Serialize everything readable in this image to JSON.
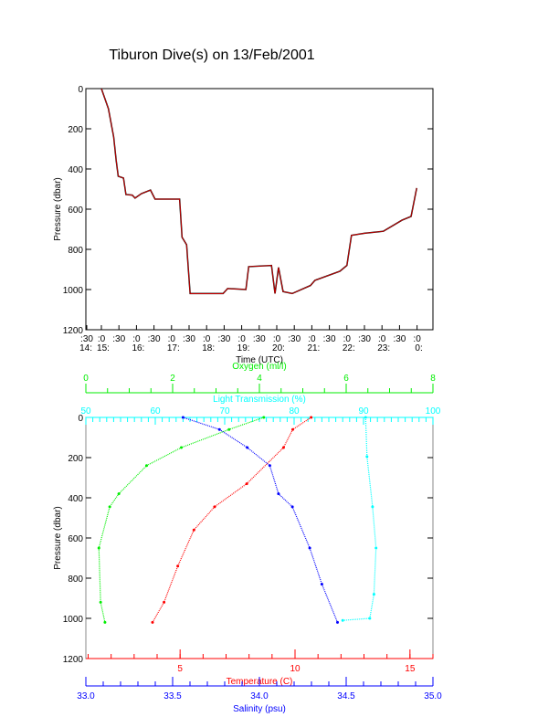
{
  "chart_data": [
    {
      "type": "line",
      "title": "Tiburon Dive(s) on 13/Feb/2001",
      "xlabel": "Time (UTC)",
      "ylabel": "Pressure (dbar)",
      "xlim_hours": [
        14.5,
        24.5
      ],
      "ylim": [
        1200,
        0
      ],
      "x_tick_top": [
        ":30",
        ":0",
        ":30",
        ":0",
        ":30",
        ":0",
        ":30",
        ":0",
        ":30",
        ":0",
        ":30",
        ":0",
        ":30",
        ":0",
        ":30",
        ":0",
        ":30",
        ":0",
        ":30",
        ":0"
      ],
      "x_tick_bottom": [
        "14:",
        "15:",
        "",
        "16:",
        "",
        "17:",
        "",
        "18:",
        "",
        "19:",
        "",
        "20:",
        "",
        "21:",
        "",
        "22:",
        "",
        "23:",
        "",
        "0:"
      ],
      "y_ticks": [
        0,
        200,
        400,
        600,
        800,
        1000,
        1200
      ],
      "series": [
        {
          "name": "pressure",
          "color": "#ff0000",
          "points": [
            [
              15.0,
              0
            ],
            [
              15.2,
              100
            ],
            [
              15.35,
              240
            ],
            [
              15.42,
              355
            ],
            [
              15.48,
              436
            ],
            [
              15.63,
              445
            ],
            [
              15.7,
              527
            ],
            [
              15.88,
              530
            ],
            [
              15.96,
              545
            ],
            [
              16.14,
              523
            ],
            [
              16.4,
              505
            ],
            [
              16.53,
              550
            ],
            [
              17.23,
              550
            ],
            [
              17.3,
              740
            ],
            [
              17.43,
              777
            ],
            [
              17.48,
              900
            ],
            [
              17.53,
              1020
            ],
            [
              18.47,
              1020
            ],
            [
              18.6,
              995
            ],
            [
              19.12,
              1000
            ],
            [
              19.2,
              886
            ],
            [
              19.85,
              880
            ],
            [
              19.95,
              1020
            ],
            [
              20.05,
              890
            ],
            [
              20.18,
              1010
            ],
            [
              20.44,
              1020
            ],
            [
              20.96,
              980
            ],
            [
              21.09,
              954
            ],
            [
              21.8,
              909
            ],
            [
              22.0,
              880
            ],
            [
              22.13,
              730
            ],
            [
              22.5,
              720
            ],
            [
              23.04,
              710
            ],
            [
              23.57,
              655
            ],
            [
              23.83,
              636
            ],
            [
              23.99,
              495
            ]
          ]
        }
      ]
    },
    {
      "type": "line",
      "ylabel": "Pressure (dbar)",
      "ylim": [
        1200,
        0
      ],
      "y_ticks": [
        0,
        200,
        400,
        600,
        800,
        1000,
        1200
      ],
      "axes": [
        {
          "name": "Oxygen (ml/l)",
          "color": "#00ee00",
          "range": [
            0,
            8
          ],
          "ticks": [
            0,
            2,
            4,
            6,
            8
          ],
          "minor": 16,
          "position": "top-outer"
        },
        {
          "name": "Light Transmission (%)",
          "color": "#00ffff",
          "range": [
            50,
            100
          ],
          "ticks": [
            50,
            60,
            70,
            80,
            90,
            100
          ],
          "minor": 50,
          "position": "top-inner"
        },
        {
          "name": "Temperature (C)",
          "color": "#ff0000",
          "range": [
            0.9,
            16
          ],
          "ticks": [
            5,
            10,
            15
          ],
          "minor_step": 1,
          "position": "bottom-inner"
        },
        {
          "name": "Salinity (psu)",
          "color": "#0000ff",
          "range": [
            33.0,
            35.0
          ],
          "ticks": [
            "33.0",
            "33.5",
            "34.0",
            "34.5",
            "35.0"
          ],
          "minor": 20,
          "position": "bottom-outer"
        }
      ],
      "series": [
        {
          "name": "Temperature",
          "axis": 2,
          "color": "#ff0000",
          "points": [
            [
              10.7,
              0
            ],
            [
              9.9,
              60
            ],
            [
              9.5,
              150
            ],
            [
              7.9,
              330
            ],
            [
              6.5,
              445
            ],
            [
              5.6,
              560
            ],
            [
              4.9,
              740
            ],
            [
              4.3,
              920
            ],
            [
              3.8,
              1020
            ]
          ]
        },
        {
          "name": "Salinity",
          "axis": 3,
          "color": "#0000ff",
          "points": [
            [
              33.56,
              0
            ],
            [
              33.77,
              60
            ],
            [
              33.93,
              150
            ],
            [
              34.06,
              240
            ],
            [
              34.11,
              380
            ],
            [
              34.19,
              445
            ],
            [
              34.29,
              650
            ],
            [
              34.36,
              830
            ],
            [
              34.45,
              1020
            ]
          ]
        },
        {
          "name": "Oxygen",
          "axis": 0,
          "color": "#00ee00",
          "points": [
            [
              4.1,
              0
            ],
            [
              3.3,
              60
            ],
            [
              2.2,
              150
            ],
            [
              1.4,
              240
            ],
            [
              0.76,
              380
            ],
            [
              0.55,
              445
            ],
            [
              0.3,
              650
            ],
            [
              0.34,
              920
            ],
            [
              0.44,
              1020
            ]
          ]
        },
        {
          "name": "Light Transmission",
          "axis": 1,
          "color": "#00ffff",
          "points": [
            [
              90.3,
              0
            ],
            [
              90.5,
              195
            ],
            [
              91.3,
              445
            ],
            [
              91.8,
              650
            ],
            [
              91.5,
              880
            ],
            [
              90.9,
              1000
            ],
            [
              87,
              1010
            ]
          ]
        }
      ]
    }
  ]
}
